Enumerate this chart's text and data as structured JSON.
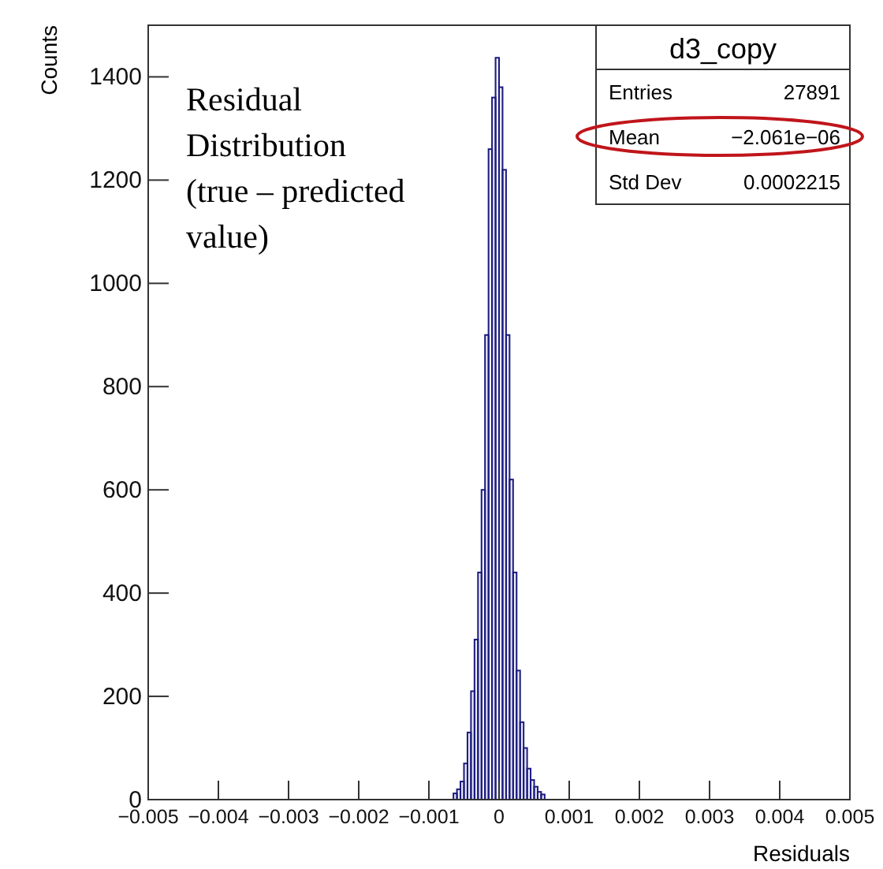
{
  "chart_data": {
    "type": "histogram",
    "xlabel": "Residuals",
    "ylabel": "Counts",
    "color": "#1a1a80",
    "bins": [
      -0.00065,
      -0.0006,
      -0.00055,
      -0.0005,
      -0.00045,
      -0.0004,
      -0.00035,
      -0.0003,
      -0.00025,
      -0.0002,
      -0.00015,
      -0.0001,
      -5e-05,
      0,
      5e-05,
      0.0001,
      0.00015,
      0.0002,
      0.00025,
      0.0003,
      0.00035,
      0.0004,
      0.00045,
      0.0005,
      0.00055,
      0.0006,
      0.00065
    ],
    "values": [
      12,
      20,
      35,
      70,
      130,
      210,
      310,
      440,
      600,
      900,
      1260,
      1360,
      1437,
      1380,
      1220,
      900,
      620,
      440,
      250,
      150,
      100,
      60,
      38,
      25,
      15,
      10
    ],
    "xlim": [
      -0.005,
      0.005
    ],
    "xticks": [
      {
        "value": -0.005,
        "label": "−0.005"
      },
      {
        "value": -0.004,
        "label": "−0.004"
      },
      {
        "value": -0.003,
        "label": "−0.003"
      },
      {
        "value": -0.002,
        "label": "−0.002"
      },
      {
        "value": -0.001,
        "label": "−0.001"
      },
      0,
      0.001,
      0.002,
      0.003,
      0.004,
      0.005
    ],
    "ylim": [
      0,
      1500
    ],
    "yticks": [
      0,
      200,
      400,
      600,
      800,
      1000,
      1200,
      1400
    ],
    "annotations": [
      "Residual Distribution (true – predicted value)",
      "d3_copy",
      "Entries 27891",
      "Mean −2.061e−06",
      "Std Dev 0.0002215"
    ]
  }
}
